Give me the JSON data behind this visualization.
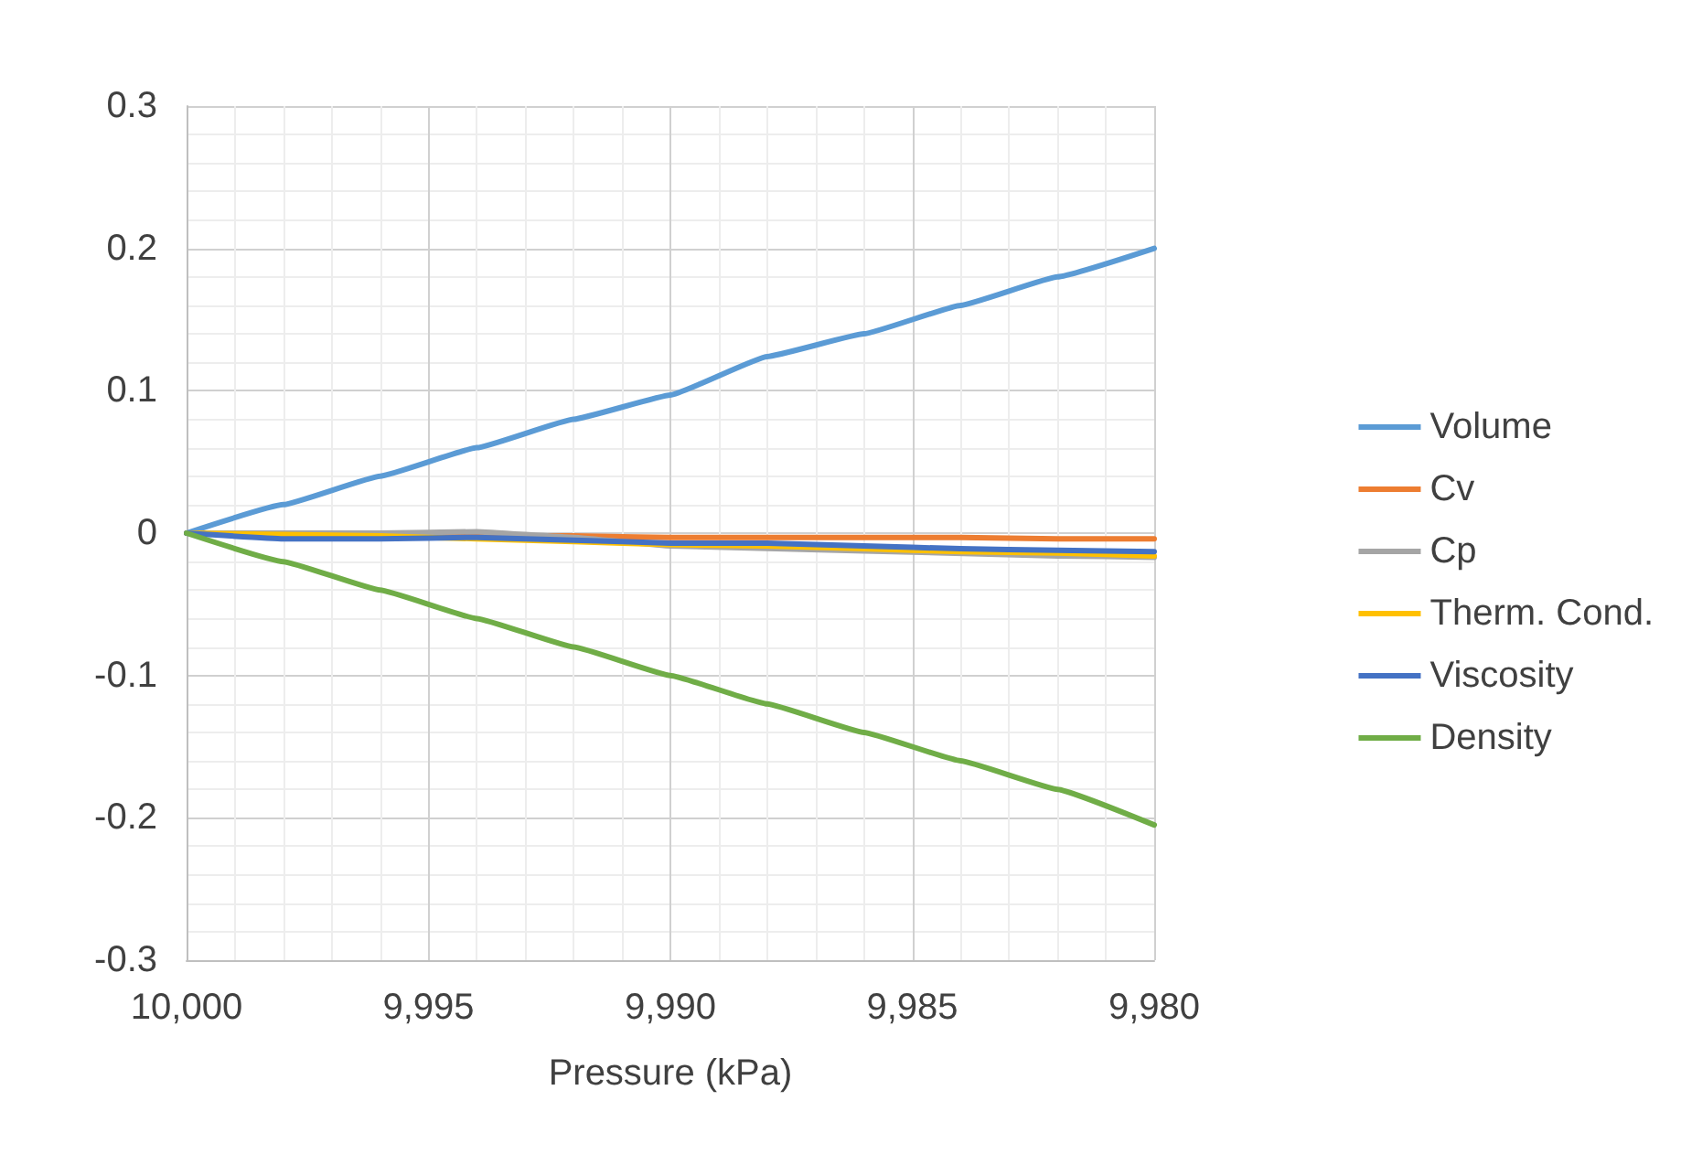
{
  "chart_data": {
    "type": "line",
    "xlabel": "Pressure (kPa)",
    "x": [
      10000,
      9998,
      9996,
      9994,
      9992,
      9990,
      9988,
      9986,
      9984,
      9982,
      9980
    ],
    "series": [
      {
        "name": "Volume",
        "color": "#5b9bd5",
        "values": [
          0,
          0.02,
          0.04,
          0.06,
          0.08,
          0.097,
          0.124,
          0.14,
          0.16,
          0.18,
          0.2
        ]
      },
      {
        "name": "Cv",
        "color": "#ed7d31",
        "values": [
          null,
          null,
          -0.001,
          -0.002,
          -0.002,
          -0.003,
          -0.003,
          -0.003,
          -0.003,
          -0.004,
          -0.004
        ]
      },
      {
        "name": "Cp",
        "color": "#a5a5a5",
        "values": [
          0,
          null,
          0,
          0.001,
          -0.003,
          -0.009,
          null,
          null,
          null,
          -0.016,
          -0.017
        ]
      },
      {
        "name": "Therm. Cond.",
        "color": "#ffc000",
        "values": [
          0,
          -0.001,
          -0.002,
          -0.004,
          -0.006,
          -0.008,
          -0.009,
          -0.011,
          -0.013,
          -0.014,
          -0.016
        ]
      },
      {
        "name": "Viscosity",
        "color": "#4472c4",
        "values": [
          0,
          -0.004,
          -0.004,
          -0.003,
          -0.005,
          -0.007,
          -0.007,
          -0.009,
          -0.011,
          -0.012,
          -0.013
        ]
      },
      {
        "name": "Density",
        "color": "#70ad47",
        "values": [
          0,
          -0.02,
          -0.04,
          -0.06,
          -0.08,
          -0.1,
          -0.12,
          -0.14,
          -0.16,
          -0.18,
          -0.205
        ]
      }
    ],
    "xlim": [
      10000,
      9980
    ],
    "xticks": [
      {
        "value": 10000,
        "label": "10,000"
      },
      {
        "value": 9995,
        "label": "9,995"
      },
      {
        "value": 9990,
        "label": "9,990"
      },
      {
        "value": 9985,
        "label": "9,985"
      },
      {
        "value": 9980,
        "label": "9,980"
      }
    ],
    "ylim": [
      -0.3,
      0.3
    ],
    "yticks": [
      -0.3,
      -0.2,
      -0.1,
      0,
      0.1,
      0.2,
      0.3
    ],
    "grid": true,
    "legend": "right",
    "marker": "none",
    "line_style": "solid"
  }
}
